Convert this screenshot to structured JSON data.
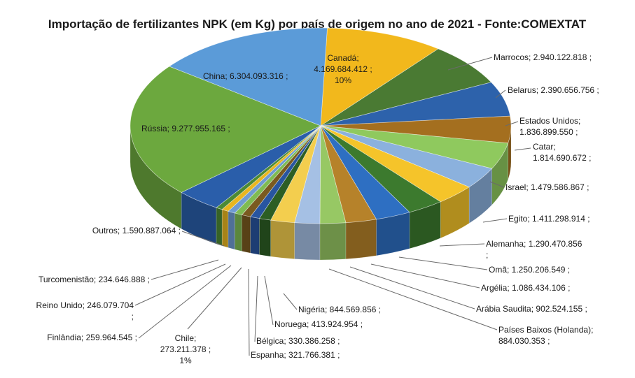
{
  "chart_data": {
    "type": "pie",
    "title": "Importação de fertilizantes NPK (em Kg) por país de origem no ano de 2021 - Fonte:COMEXTAT",
    "labels": [
      "Canadá",
      "Marrocos",
      "Belarus",
      "Estados Unidos",
      "Catar",
      "Israel",
      "Egito",
      "Alemanha",
      "Omã",
      "Argélia",
      "Arábia Saudita",
      "Países Baixos (Holanda)",
      "Nigéria",
      "Noruega",
      "Bélgica",
      "Espanha",
      "Chile",
      "Finlândia",
      "Reino Unido",
      "Turcomenistão",
      "Outros",
      "Rússia",
      "China"
    ],
    "values": [
      4169684412,
      2940122818,
      2390656756,
      1836899550,
      1814690672,
      1479586867,
      1411298914,
      1290470856,
      1250206549,
      1086434106,
      902524155,
      884030353,
      844569856,
      413924954,
      330386258,
      321766381,
      273211378,
      259964545,
      246079704,
      234646888,
      1590887064,
      9277955165,
      6304093316
    ],
    "value_labels": [
      "4.169.684.412",
      "2.940.122.818",
      "2.390.656.756",
      "1.836.899.550",
      "1.814.690.672",
      "1.479.586.867",
      "1.411.298.914",
      "1.290.470.856",
      "1.250.206.549",
      "1.086.434.106",
      "902.524.155",
      "884.030.353",
      "844.569.856",
      "413.924.954",
      "330.386.258",
      "321.766.381",
      "273.211.378",
      "259.964.545",
      "246.079.704",
      "234.646.888",
      "1.590.887.064",
      "9.277.955.165",
      "6.304.093.316"
    ],
    "percents": [
      "10%",
      "7%",
      "6%",
      "4%",
      "4%",
      "4%",
      "3%",
      "3%",
      "3%",
      "3%",
      "2%",
      "2%",
      "2%",
      "1%",
      "1%",
      "1%",
      "1%",
      "1%",
      "1%",
      "1%",
      "4%",
      "22%",
      "15%"
    ],
    "colors": [
      "#f2b81c",
      "#4a7a33",
      "#2d62ab",
      "#a46f1f",
      "#8fc95e",
      "#8bb1dd",
      "#f5c42a",
      "#3c7a2e",
      "#2e6fc2",
      "#b6822a",
      "#97c864",
      "#a5c0e4",
      "#f3ce4e",
      "#2c5e24",
      "#2855a0",
      "#7a5a20",
      "#7fbb53",
      "#6f9bd2",
      "#e8b620",
      "#4c8a35",
      "#2a5eaa",
      "#6ca83e",
      "#5b9bd8"
    ],
    "legend": "none",
    "three_d": true
  }
}
